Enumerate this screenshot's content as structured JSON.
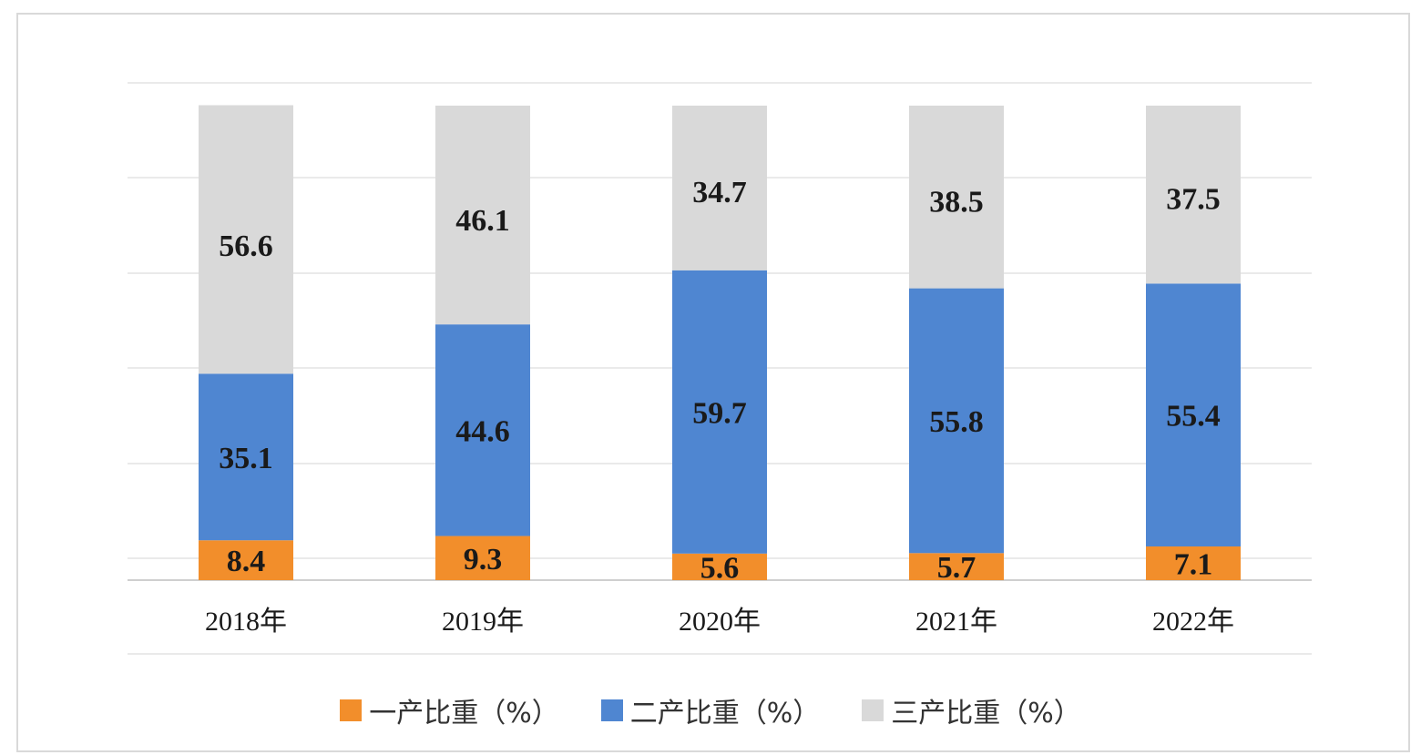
{
  "chart_data": {
    "type": "bar",
    "stacked": true,
    "categories": [
      "2018年",
      "2019年",
      "2020年",
      "2021年",
      "2022年"
    ],
    "series": [
      {
        "name": "一产比重（%）",
        "color": "#f28e2b",
        "values": [
          8.4,
          9.3,
          5.6,
          5.7,
          7.1
        ]
      },
      {
        "name": "二产比重（%）",
        "color": "#4f86d1",
        "values": [
          35.1,
          44.6,
          59.7,
          55.8,
          55.4
        ]
      },
      {
        "name": "三产比重（%）",
        "color": "#d9d9d9",
        "values": [
          56.6,
          46.1,
          34.7,
          38.5,
          37.5
        ]
      }
    ],
    "ylim": [
      0,
      100
    ],
    "grid": true,
    "legend_position": "bottom",
    "data_labels": true
  }
}
